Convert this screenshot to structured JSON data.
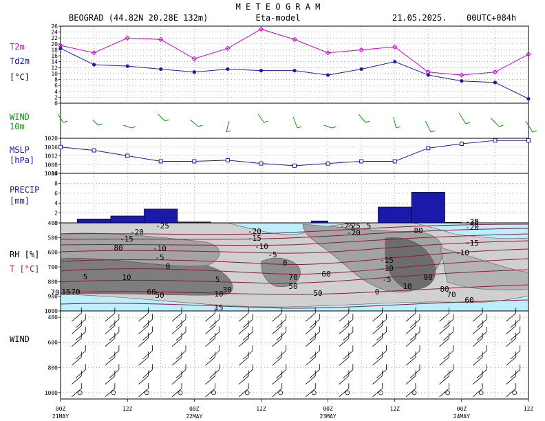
{
  "header": {
    "title": "M E T E O G R A M",
    "location": "BEOGRAD (44.82N  20.28E   132m)",
    "model": "Eta-model",
    "date": "21.05.2025.",
    "run": "00UTC+084h"
  },
  "panels": {
    "temp": {
      "label1": "T2m",
      "label2": "Td2m",
      "label3": "[°C]"
    },
    "wind10": {
      "label1": "WIND",
      "label2": "10m"
    },
    "mslp": {
      "label1": "MSLP",
      "label2": "[hPa]"
    },
    "precip": {
      "label1": "PRECIP",
      "label2": "[mm]"
    },
    "profile": {
      "label1": "RH [%]",
      "label2": "T [°C]"
    },
    "windprof": {
      "label1": "WIND"
    }
  },
  "colors": {
    "t2m": "#cc00cc",
    "td2m": "#1a1aa6",
    "wind": "#009900",
    "precip": "#1a1aaa",
    "humid": "#bdeefc",
    "temp_contour": "#8b1a3c"
  },
  "chart_data": [
    {
      "type": "line",
      "name": "temperature",
      "x": [
        0,
        6,
        12,
        18,
        24,
        30,
        36,
        42,
        48,
        54,
        60,
        66,
        72,
        78,
        84
      ],
      "ylim": [
        0,
        26
      ],
      "yticks": [
        0,
        2,
        4,
        6,
        8,
        10,
        12,
        14,
        16,
        18,
        20,
        22,
        24,
        26
      ],
      "series": [
        {
          "name": "T2m",
          "values": [
            19.5,
            17,
            22,
            21.5,
            15,
            18.5,
            25,
            21.5,
            17,
            18,
            19,
            10.5,
            9.5,
            10.5,
            16.5
          ]
        },
        {
          "name": "Td2m",
          "values": [
            18.5,
            13,
            12.5,
            11.5,
            10.5,
            11.5,
            11,
            11,
            9.5,
            11.5,
            14,
            9.5,
            7.5,
            7,
            1.5
          ]
        }
      ]
    },
    {
      "type": "scatter",
      "name": "wind10m",
      "x": [
        0,
        6,
        12,
        18,
        24,
        30,
        36,
        42,
        48,
        54,
        60,
        66,
        72,
        78,
        84
      ]
    },
    {
      "type": "line",
      "name": "mslp",
      "x": [
        0,
        6,
        12,
        18,
        24,
        30,
        36,
        42,
        48,
        54,
        60,
        66,
        72,
        78,
        84
      ],
      "ylim": [
        1004,
        1020
      ],
      "yticks": [
        1004,
        1008,
        1012,
        1016,
        1020
      ],
      "values": [
        1016,
        1014.5,
        1012,
        1009.5,
        1009.5,
        1010,
        1008.5,
        1007.5,
        1008.5,
        1009.5,
        1009.5,
        1015.5,
        1017.5,
        1019,
        1019
      ]
    },
    {
      "type": "bar",
      "name": "precip",
      "bins": [
        [
          3,
          9
        ],
        [
          9,
          15
        ],
        [
          15,
          21
        ],
        [
          21,
          27
        ],
        [
          45,
          48
        ],
        [
          57,
          63
        ],
        [
          63,
          69
        ],
        [
          69,
          72
        ]
      ],
      "values": [
        0.8,
        1.4,
        2.8,
        0.2,
        0.4,
        3.2,
        6.2,
        0.1
      ],
      "ylim": [
        0,
        10
      ],
      "yticks": [
        0,
        2,
        4,
        6,
        8,
        10
      ]
    },
    {
      "type": "heatmap",
      "name": "rh_t_profile",
      "ylim": [
        1000,
        400
      ],
      "yticks": [
        400,
        500,
        600,
        700,
        800,
        900,
        1000
      ],
      "labels": [
        "-25",
        "-20",
        "-15",
        "-10",
        "-5",
        "0",
        "5",
        "10",
        "15",
        "80",
        "60",
        "50",
        "70",
        "-20",
        "-15",
        "-10",
        "-5",
        "0",
        "5",
        "10",
        "15",
        "60",
        "70",
        "50",
        "-25",
        "-20",
        "-15",
        "-10",
        "-5",
        "0",
        "5",
        "10",
        "-25",
        "-20",
        "-15",
        "-10",
        "80",
        "90",
        "80",
        "70",
        "60",
        "-30",
        "50",
        "-25",
        "70",
        "30"
      ]
    },
    {
      "type": "scatter",
      "name": "wind_profile",
      "ylim": [
        1050,
        350
      ],
      "yticks": [
        400,
        600,
        800,
        1000
      ]
    }
  ],
  "time_axis": {
    "ticks": [
      "00Z",
      "12Z",
      "00Z",
      "12Z",
      "00Z",
      "12Z",
      "00Z",
      "12Z"
    ],
    "dates": [
      "21MAY",
      "22MAY",
      "23MAY",
      "24MAY"
    ]
  }
}
